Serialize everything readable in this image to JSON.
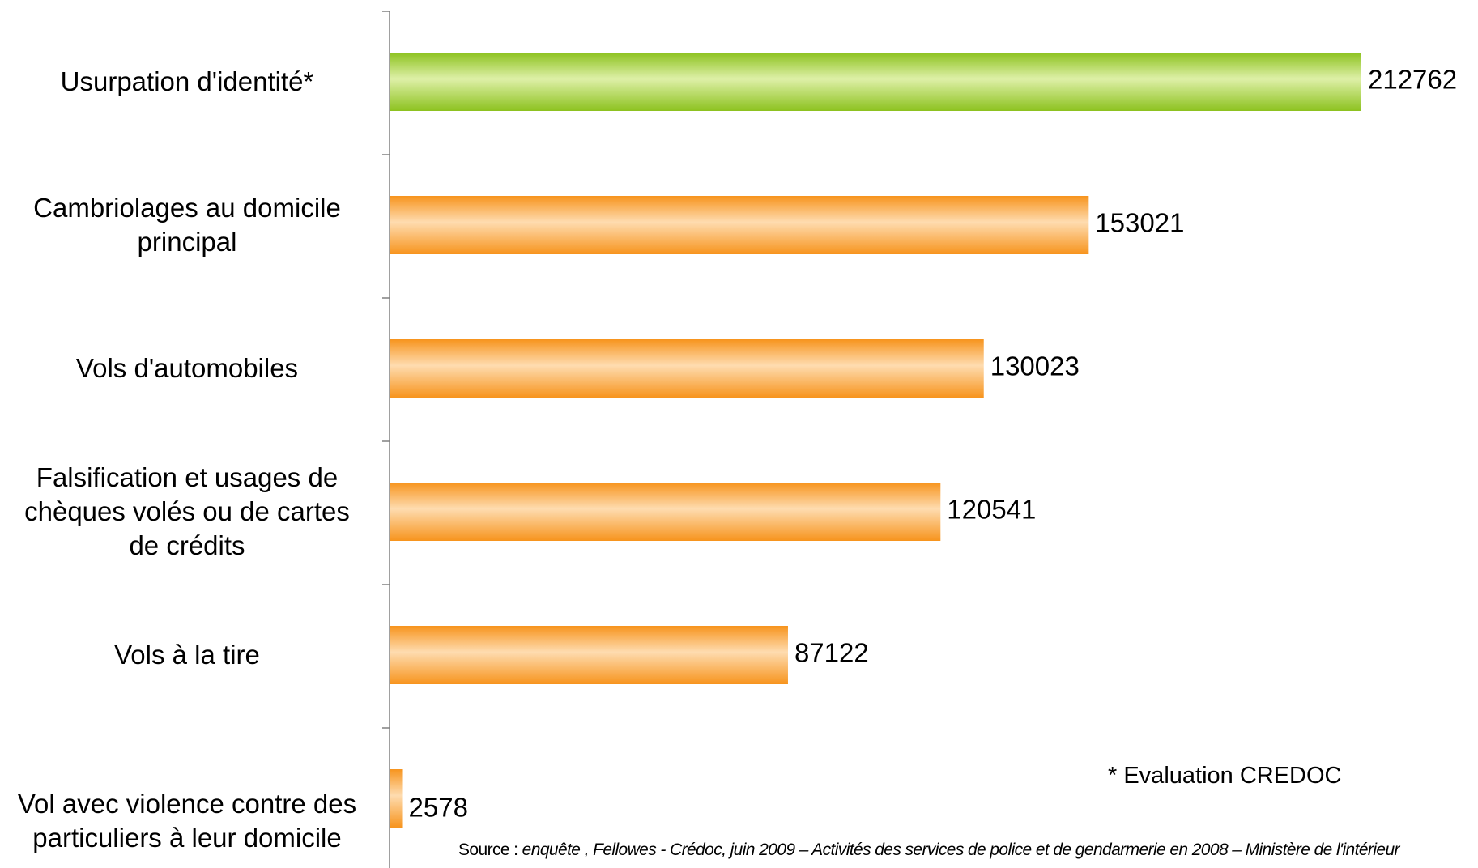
{
  "chart_data": {
    "type": "bar",
    "orientation": "horizontal",
    "categories": [
      "Usurpation d'identité*",
      "Cambriolages au domicile principal",
      "Vols d'automobiles",
      "Falsification et usages de chèques volés ou de cartes de crédits",
      "Vols à la tire",
      "Vol avec violence contre des particuliers à leur domicile"
    ],
    "values": [
      212762,
      153021,
      130023,
      120541,
      87122,
      2578
    ],
    "colors": [
      "#8dc21f",
      "#f7941d",
      "#f7941d",
      "#f7941d",
      "#f7941d",
      "#f7941d"
    ],
    "annotation": "* Evaluation CREDOC",
    "source_prefix": "Source :",
    "source": "enquête , Fellowes - Crédoc, juin 2009 – Activités des services de police et de gendarmerie en 2008 – Ministère de l'intérieur"
  }
}
